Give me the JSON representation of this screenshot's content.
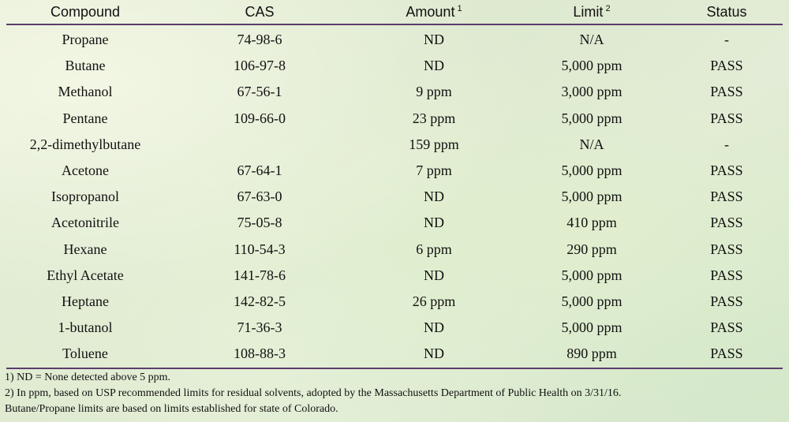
{
  "table": {
    "headers": {
      "compound": "Compound",
      "cas": "CAS",
      "amount": "Amount",
      "amount_note": "1",
      "limit": "Limit",
      "limit_note": "2",
      "status": "Status"
    },
    "rows": [
      {
        "compound": "Propane",
        "cas": "74-98-6",
        "amount": "ND",
        "limit": "N/A",
        "status": "-"
      },
      {
        "compound": "Butane",
        "cas": "106-97-8",
        "amount": "ND",
        "limit": "5,000 ppm",
        "status": "PASS"
      },
      {
        "compound": "Methanol",
        "cas": "67-56-1",
        "amount": "9 ppm",
        "limit": "3,000 ppm",
        "status": "PASS"
      },
      {
        "compound": "Pentane",
        "cas": "109-66-0",
        "amount": "23 ppm",
        "limit": "5,000 ppm",
        "status": "PASS"
      },
      {
        "compound": "2,2-dimethylbutane",
        "cas": "",
        "amount": "159 ppm",
        "limit": "N/A",
        "status": "-"
      },
      {
        "compound": "Acetone",
        "cas": "67-64-1",
        "amount": "7 ppm",
        "limit": "5,000 ppm",
        "status": "PASS"
      },
      {
        "compound": "Isopropanol",
        "cas": "67-63-0",
        "amount": "ND",
        "limit": "5,000 ppm",
        "status": "PASS"
      },
      {
        "compound": "Acetonitrile",
        "cas": "75-05-8",
        "amount": "ND",
        "limit": "410 ppm",
        "status": "PASS"
      },
      {
        "compound": "Hexane",
        "cas": "110-54-3",
        "amount": "6 ppm",
        "limit": "290 ppm",
        "status": "PASS"
      },
      {
        "compound": "Ethyl Acetate",
        "cas": "141-78-6",
        "amount": "ND",
        "limit": "5,000 ppm",
        "status": "PASS"
      },
      {
        "compound": "Heptane",
        "cas": "142-82-5",
        "amount": "26 ppm",
        "limit": "5,000 ppm",
        "status": "PASS"
      },
      {
        "compound": "1-butanol",
        "cas": "71-36-3",
        "amount": "ND",
        "limit": "5,000 ppm",
        "status": "PASS"
      },
      {
        "compound": "Toluene",
        "cas": "108-88-3",
        "amount": "ND",
        "limit": "890 ppm",
        "status": "PASS"
      }
    ]
  },
  "notes": [
    "1) ND = None detected above 5 ppm.",
    "2) In ppm, based on USP recommended limits for residual solvents, adopted by the Massachusetts Department of Public Health on 3/31/16.",
    "Butane/Propane limits are based on limits established for state of Colorado."
  ],
  "colors": {
    "rule": "#5a3d6b"
  }
}
